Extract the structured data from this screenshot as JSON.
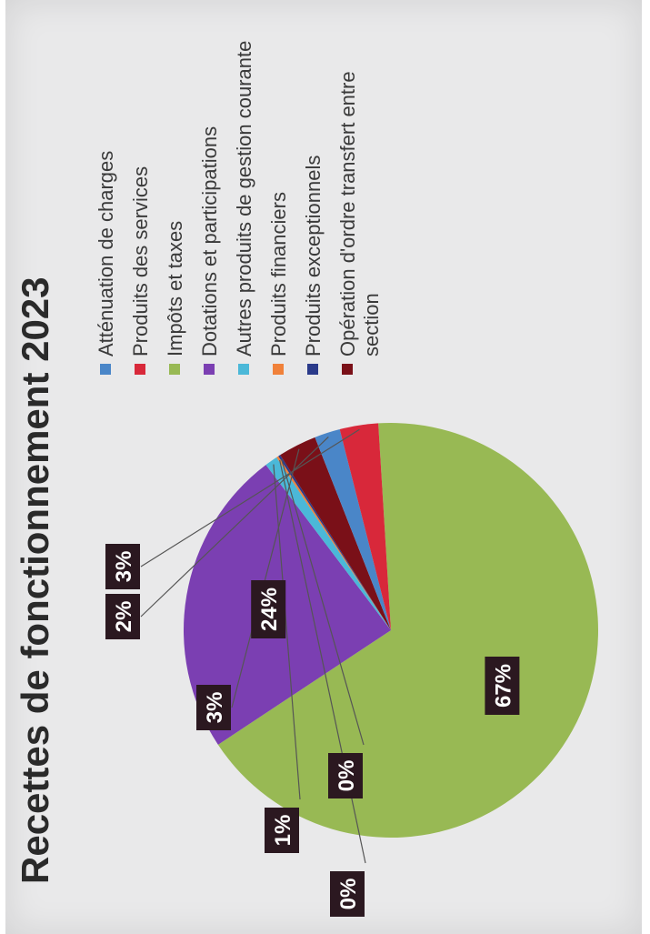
{
  "chart_data": {
    "type": "pie",
    "title": "Recettes de fonctionnement 2023",
    "legend_position": "right",
    "slices": [
      {
        "name": "Impôts et taxes",
        "value": 67,
        "label": "67%",
        "color": "#98b954"
      },
      {
        "name": "Dotations et participations",
        "value": 24,
        "label": "24%",
        "color": "#7b3fb2"
      },
      {
        "name": "Autres produits de gestion courante",
        "value": 1,
        "label": "1%",
        "color": "#4bb8d8"
      },
      {
        "name": "Produits financiers",
        "value": 0,
        "label": "0%",
        "color": "#f0813a"
      },
      {
        "name": "Produits exceptionnels",
        "value": 0,
        "label": "0%",
        "color": "#2a3a8a"
      },
      {
        "name": "Opération d'ordre transfert entre section",
        "value": 3,
        "label": "3%",
        "color": "#7a1018"
      },
      {
        "name": "Atténuation de charges",
        "value": 2,
        "label": "2%",
        "color": "#4a86c8"
      },
      {
        "name": "Produits des services",
        "value": 3,
        "label": "3%",
        "color": "#d8283a"
      }
    ],
    "legend": [
      {
        "label": "Atténuation de charges",
        "color": "#4a86c8"
      },
      {
        "label": "Produits des services",
        "color": "#d8283a"
      },
      {
        "label": "Impôts et taxes",
        "color": "#98b954"
      },
      {
        "label": "Dotations et participations",
        "color": "#7b3fb2"
      },
      {
        "label": "Autres produits de gestion courante",
        "color": "#4bb8d8"
      },
      {
        "label": "Produits financiers",
        "color": "#f0813a"
      },
      {
        "label": "Produits exceptionnels",
        "color": "#2a3a8a"
      },
      {
        "label": "Opération d'ordre transfert entre section",
        "color": "#7a1018"
      }
    ]
  }
}
